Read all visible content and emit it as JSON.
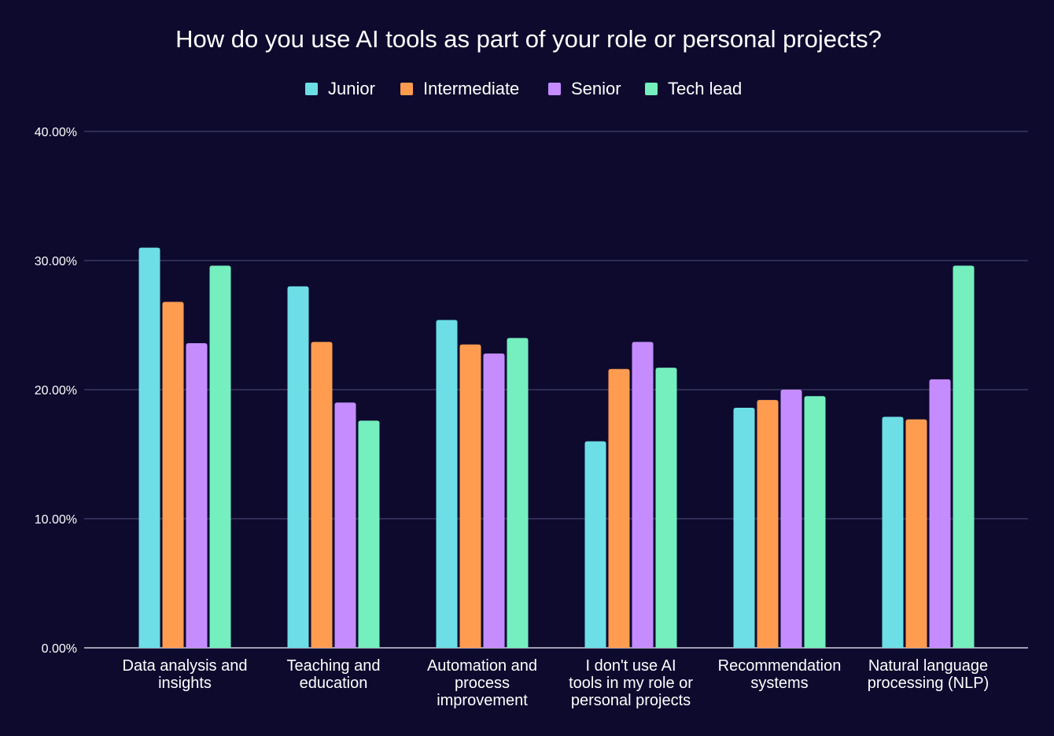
{
  "chart_data": {
    "type": "bar",
    "title": "How do you use AI tools as part of your role or personal projects?",
    "xlabel": "",
    "ylabel": "",
    "ylim": [
      0,
      40
    ],
    "yticks": [
      "0.00%",
      "10.00%",
      "20.00%",
      "30.00%",
      "40.00%"
    ],
    "grid": true,
    "legend_position": "top-center",
    "categories": [
      [
        "Data analysis and",
        "insights"
      ],
      [
        "Teaching and",
        "education"
      ],
      [
        "Automation and",
        "process",
        "improvement"
      ],
      [
        "I don't use AI",
        "tools in my role or",
        "personal projects"
      ],
      [
        "Recommendation",
        "systems"
      ],
      [
        "Natural language",
        "processing (NLP)"
      ]
    ],
    "series": [
      {
        "name": "Junior",
        "color": "#6ddde6",
        "values": [
          31.0,
          28.0,
          25.4,
          16.0,
          18.6,
          17.9
        ]
      },
      {
        "name": "Intermediate",
        "color": "#ff9c50",
        "values": [
          26.8,
          23.7,
          23.5,
          21.6,
          19.2,
          17.7
        ]
      },
      {
        "name": "Senior",
        "color": "#c58cff",
        "values": [
          23.6,
          19.0,
          22.8,
          23.7,
          20.0,
          20.8
        ]
      },
      {
        "name": "Tech lead",
        "color": "#74efbd",
        "values": [
          29.6,
          17.6,
          24.0,
          21.7,
          19.5,
          29.6
        ]
      }
    ]
  }
}
